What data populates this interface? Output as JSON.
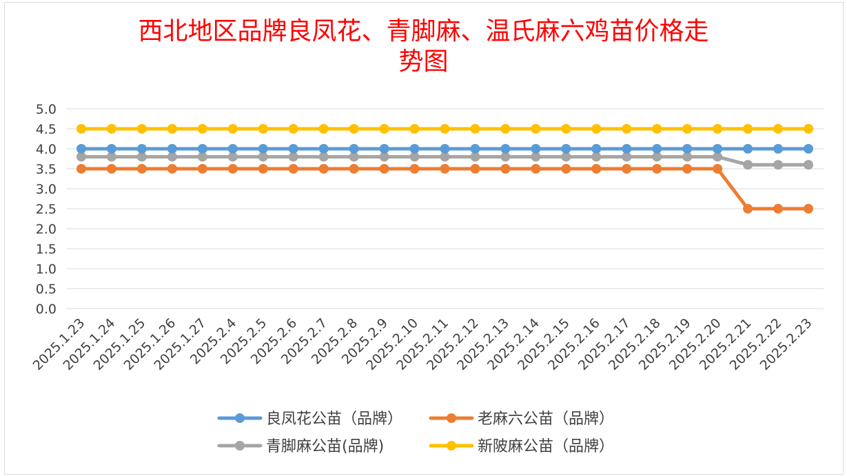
{
  "chart_data": {
    "type": "line",
    "title_line1": "西北地区品牌良凤花、青脚麻、温氏麻六鸡苗价格走",
    "title_line2": "势图",
    "xlabel": "",
    "ylabel": "",
    "ylim": [
      0,
      5
    ],
    "ytick_labels": [
      "0.0",
      "0.5",
      "1.0",
      "1.5",
      "2.0",
      "2.5",
      "3.0",
      "3.5",
      "4.0",
      "4.5",
      "5.0"
    ],
    "grid": true,
    "legend_position": "bottom",
    "categories": [
      "2025.1.23",
      "2025.1.24",
      "2025.1.25",
      "2025.1.26",
      "2025.1.27",
      "2025.2.4",
      "2025.2.5",
      "2025.2.6",
      "2025.2.7",
      "2025.2.8",
      "2025.2.9",
      "2025.2.10",
      "2025.2.11",
      "2025.2.12",
      "2025.2.13",
      "2025.2.14",
      "2025.2.15",
      "2025.2.16",
      "2025.2.17",
      "2025.2.18",
      "2025.2.19",
      "2025.2.20",
      "2025.2.21",
      "2025.2.22",
      "2025.2.23"
    ],
    "series": [
      {
        "name": "良凤花公苗（品牌）",
        "color": "#5b9bd5",
        "values": [
          4.0,
          4.0,
          4.0,
          4.0,
          4.0,
          4.0,
          4.0,
          4.0,
          4.0,
          4.0,
          4.0,
          4.0,
          4.0,
          4.0,
          4.0,
          4.0,
          4.0,
          4.0,
          4.0,
          4.0,
          4.0,
          4.0,
          4.0,
          4.0,
          4.0
        ]
      },
      {
        "name": "老麻六公苗（品牌）",
        "color": "#ed7d31",
        "values": [
          3.5,
          3.5,
          3.5,
          3.5,
          3.5,
          3.5,
          3.5,
          3.5,
          3.5,
          3.5,
          3.5,
          3.5,
          3.5,
          3.5,
          3.5,
          3.5,
          3.5,
          3.5,
          3.5,
          3.5,
          3.5,
          3.5,
          2.5,
          2.5,
          2.5
        ]
      },
      {
        "name": "青脚麻公苗(品牌)",
        "color": "#a5a5a5",
        "values": [
          3.8,
          3.8,
          3.8,
          3.8,
          3.8,
          3.8,
          3.8,
          3.8,
          3.8,
          3.8,
          3.8,
          3.8,
          3.8,
          3.8,
          3.8,
          3.8,
          3.8,
          3.8,
          3.8,
          3.8,
          3.8,
          3.8,
          3.6,
          3.6,
          3.6
        ]
      },
      {
        "name": "新陂麻公苗（品牌）",
        "color": "#ffc000",
        "values": [
          4.5,
          4.5,
          4.5,
          4.5,
          4.5,
          4.5,
          4.5,
          4.5,
          4.5,
          4.5,
          4.5,
          4.5,
          4.5,
          4.5,
          4.5,
          4.5,
          4.5,
          4.5,
          4.5,
          4.5,
          4.5,
          4.5,
          4.5,
          4.5,
          4.5
        ]
      }
    ],
    "draw_order": [
      2,
      1,
      0,
      3
    ],
    "legend_order": [
      0,
      1,
      2,
      3
    ]
  }
}
